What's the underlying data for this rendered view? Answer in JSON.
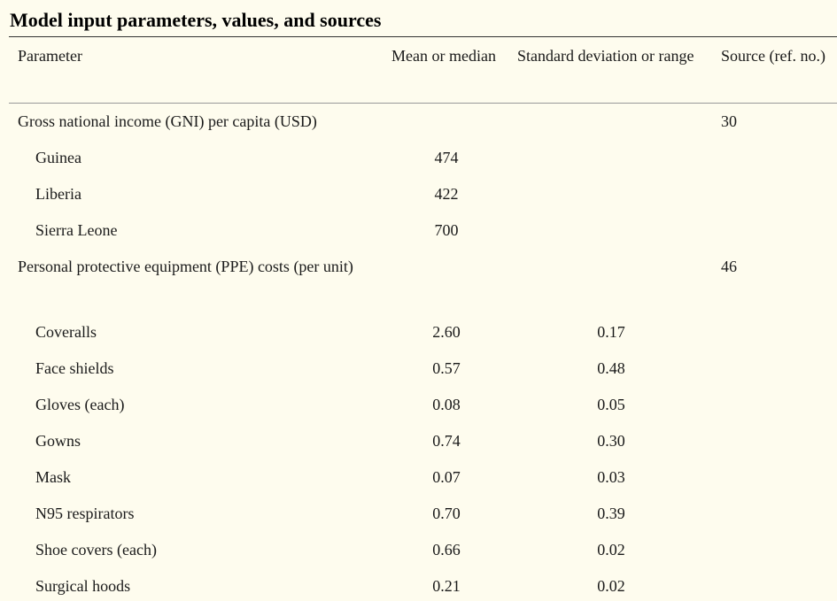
{
  "title": "Model input parameters, values, and sources",
  "headers": {
    "parameter": "Parameter",
    "mean": "Mean or median",
    "sd": "Standard deviation or range",
    "source": "Source (ref. no.)"
  },
  "rows": [
    {
      "label": "Gross national income (GNI) per capita (USD)",
      "type": "group",
      "mean": "",
      "sd": "",
      "source": "30"
    },
    {
      "label": "Guinea",
      "type": "item",
      "mean": "474",
      "sd": "",
      "source": ""
    },
    {
      "label": "Liberia",
      "type": "item",
      "mean": "422",
      "sd": "",
      "source": ""
    },
    {
      "label": "Sierra Leone",
      "type": "item",
      "mean": "700",
      "sd": "",
      "source": ""
    },
    {
      "label": "Personal protective equipment (PPE) costs (per unit)",
      "type": "group",
      "mean": "",
      "sd": "",
      "source": "46"
    },
    {
      "label": "Coveralls",
      "type": "item",
      "mean": "2.60",
      "sd": "0.17",
      "source": ""
    },
    {
      "label": "Face shields",
      "type": "item",
      "mean": "0.57",
      "sd": "0.48",
      "source": ""
    },
    {
      "label": "Gloves (each)",
      "type": "item",
      "mean": "0.08",
      "sd": "0.05",
      "source": ""
    },
    {
      "label": "Gowns",
      "type": "item",
      "mean": "0.74",
      "sd": "0.30",
      "source": ""
    },
    {
      "label": "Mask",
      "type": "item",
      "mean": "0.07",
      "sd": "0.03",
      "source": ""
    },
    {
      "label": "N95 respirators",
      "type": "item",
      "mean": "0.70",
      "sd": "0.39",
      "source": ""
    },
    {
      "label": "Shoe covers (each)",
      "type": "item",
      "mean": "0.66",
      "sd": "0.02",
      "source": ""
    },
    {
      "label": "Surgical hoods",
      "type": "item",
      "mean": "0.21",
      "sd": "0.02",
      "source": ""
    }
  ]
}
